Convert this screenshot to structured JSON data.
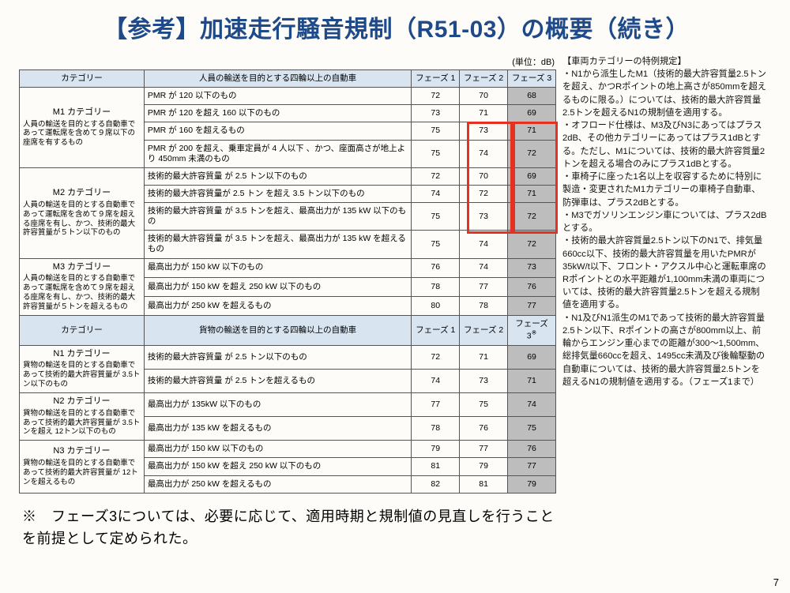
{
  "title": "【参考】加速走行騒音規制（R51-03）の概要（続き）",
  "unit_label": "(単位：dB)",
  "columns": {
    "category": "カテゴリー",
    "desc_a": "人員の輸送を目的とする四輪以上の自動車",
    "desc_b": "貨物の輸送を目的とする四輪以上の自動車",
    "phase1": "フェーズ 1",
    "phase2": "フェーズ 2",
    "phase3a": "フェーズ 3",
    "phase3b": "フェーズ 3"
  },
  "cat_m1": {
    "title": "M1 カテゴリー",
    "sub": "人員の輸送を目的とする自動車であって運転席を含めて９席以下の座席を有するもの"
  },
  "cat_m2": {
    "title": "M2 カテゴリー",
    "sub": "人員の輸送を目的とする自動車であって運転席を含めて９席を超える座席を有し、かつ、技術的最大許容質量が５トン以下のもの"
  },
  "cat_m3": {
    "title": "M3 カテゴリー",
    "sub": "人員の輸送を目的とする自動車であって運転席を含めて９席を超える座席を有し、かつ、技術的最大許容質量が５トンを超えるもの"
  },
  "cat_n1": {
    "title": "N1 カテゴリー",
    "sub": "貨物の輸送を目的とする自動車であって技術的最大許容質量が 3.5トン以下のもの"
  },
  "cat_n2": {
    "title": "N2 カテゴリー",
    "sub": "貨物の輸送を目的とする自動車であって技術的最大許容質量が 3.5トンを超え 12トン以下のもの"
  },
  "cat_n3": {
    "title": "N3 カテゴリー",
    "sub": "貨物の輸送を目的とする自動車であって技術的最大許容質量が 12トンを超えるもの"
  },
  "rows_m1": [
    {
      "d": "PMR が 120 以下のもの",
      "p1": "72",
      "p2": "70",
      "p3": "68"
    },
    {
      "d": "PMR が 120 を超え 160 以下のもの",
      "p1": "73",
      "p2": "71",
      "p3": "69"
    },
    {
      "d": "PMR が 160 を超えるもの",
      "p1": "75",
      "p2": "73",
      "p3": "71"
    },
    {
      "d": "PMR が 200 を超え、乗車定員が 4 人以下 、かつ、座面高さが地上より 450mm 未満のもの",
      "p1": "75",
      "p2": "74",
      "p3": "72"
    }
  ],
  "rows_m2": [
    {
      "d": "技術的最大許容質量 が 2.5 トン以下のもの",
      "p1": "72",
      "p2": "70",
      "p3": "69"
    },
    {
      "d": "技術的最大許容質量が 2.5 トン を超え 3.5 トン以下のもの",
      "p1": "74",
      "p2": "72",
      "p3": "71"
    },
    {
      "d": "技術的最大許容質量 が 3.5 トンを超え、最高出力が 135 kW 以下のもの",
      "p1": "75",
      "p2": "73",
      "p3": "72"
    },
    {
      "d": "技術的最大許容質量 が 3.5 トンを超え、最高出力が 135 kW を超えるもの",
      "p1": "75",
      "p2": "74",
      "p3": "72"
    }
  ],
  "rows_m3": [
    {
      "d": "最高出力が 150 kW 以下のもの",
      "p1": "76",
      "p2": "74",
      "p3": "73"
    },
    {
      "d": "最高出力が 150 kW を超え 250 kW 以下のもの",
      "p1": "78",
      "p2": "77",
      "p3": "76"
    },
    {
      "d": "最高出力が 250 kW を超えるもの",
      "p1": "80",
      "p2": "78",
      "p3": "77"
    }
  ],
  "rows_n1": [
    {
      "d": "技術的最大許容質量 が 2.5 トン以下のもの",
      "p1": "72",
      "p2": "71",
      "p3": "69"
    },
    {
      "d": "技術的最大許容質量 が 2.5 トンを超えるもの",
      "p1": "74",
      "p2": "73",
      "p3": "71"
    }
  ],
  "rows_n2": [
    {
      "d": "最高出力が 135kW 以下のもの",
      "p1": "77",
      "p2": "75",
      "p3": "74"
    },
    {
      "d": "最高出力が 135 kW を超えるもの",
      "p1": "78",
      "p2": "76",
      "p3": "75"
    }
  ],
  "rows_n3": [
    {
      "d": "最高出力が 150 kW 以下のもの",
      "p1": "79",
      "p2": "77",
      "p3": "76"
    },
    {
      "d": "最高出力が 150 kW を超え 250 kW 以下のもの",
      "p1": "81",
      "p2": "79",
      "p3": "77"
    },
    {
      "d": "最高出力が 250 kW を超えるもの",
      "p1": "82",
      "p2": "81",
      "p3": "79"
    }
  ],
  "footnote": "※　フェーズ3については、必要に応じて、適用時期と規制値の見直しを行うことを前提として定められた。",
  "side_title": "【車両カテゴリーの特例規定】",
  "side_items": [
    "・N1から派生したM1（技術的最大許容質量2.5トンを超え、かつRポイントの地上高さが850mmを超えるものに限る。）については、技術的最大許容質量2.5トンを超えるN1の規制値を適用する。",
    "・オフロード仕様は、M3及びN3にあってはプラス2dB、その他カテゴリーにあってはプラス1dBとする。ただし、M1については、技術的最大許容質量2トンを超える場合のみにプラス1dBとする。",
    "・車椅子に座った1名以上を収容するために特別に製造・変更されたM1カテゴリーの車椅子自動車、防弾車は、プラス2dBとする。",
    "・M3でガソリンエンジン車については、プラス2dBとする。",
    "・技術的最大許容質量2.5トン以下のN1で、排気量660cc以下、技術的最大許容質量を用いたPMRが35kW/t以下、フロント・アクスル中心と運転車席のRポイントとの水平距離が1,100mm未満の車両については、技術的最大許容質量2.5トンを超える規制値を適用する。",
    "・N1及びN1派生のM1であって技術的最大許容質量2.5トン以下、Rポイントの高さが800mm以上、前輪からエンジン重心までの距離が300～1,500mm、総排気量660ccを超え、1495cc未満及び後輪駆動の自動車については、技術的最大許容質量2.5トンを超えるN1の規制値を適用する。（フェーズ1まで）"
  ],
  "page_number": "7"
}
